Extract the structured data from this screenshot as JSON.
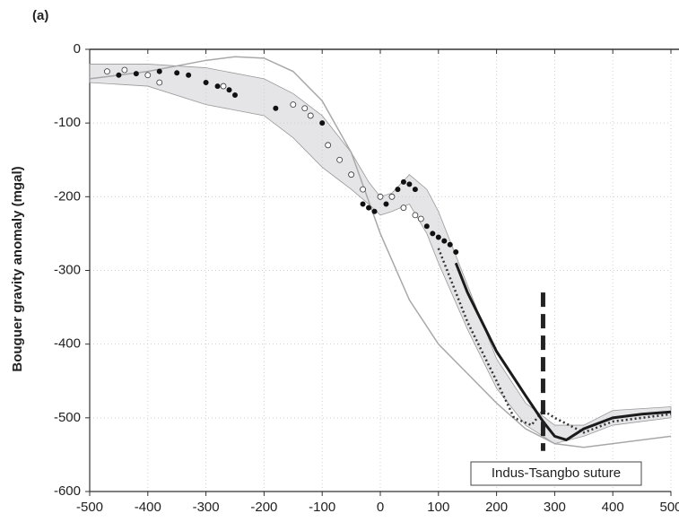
{
  "chart_data": {
    "type": "line",
    "panel_label": "(a)",
    "y_label": "Bouguer gravity anomaly  (mgal)",
    "xlim": [
      -500,
      500
    ],
    "xticks": [
      -500,
      -400,
      -300,
      -200,
      -100,
      0,
      100,
      200,
      300,
      400,
      500
    ],
    "ylim": [
      -600,
      0
    ],
    "yticks": [
      0,
      -100,
      -200,
      -300,
      -400,
      -500,
      -600
    ],
    "grid": true,
    "band": {
      "color": "#cfcfd6",
      "x": [
        -500,
        -400,
        -300,
        -200,
        -150,
        -100,
        -50,
        -20,
        0,
        20,
        50,
        80,
        100,
        150,
        200,
        250,
        300,
        350,
        400,
        500
      ],
      "upper": [
        -20,
        -20,
        -25,
        -40,
        -60,
        -90,
        -140,
        -180,
        -200,
        -195,
        -170,
        -190,
        -220,
        -320,
        -420,
        -480,
        -510,
        -510,
        -490,
        -485
      ],
      "lower": [
        -45,
        -50,
        -75,
        -90,
        -120,
        -160,
        -190,
        -210,
        -225,
        -220,
        -210,
        -250,
        -290,
        -380,
        -460,
        -510,
        -535,
        -525,
        -510,
        -500
      ]
    },
    "series": [
      {
        "style": "line",
        "color": "#a8a8a8",
        "x": [
          -500,
          -400,
          -300,
          -250,
          -200,
          -150,
          -100,
          -50,
          0,
          50,
          100,
          150,
          200,
          250,
          300,
          350,
          400,
          500
        ],
        "values": [
          -40,
          -30,
          -15,
          -10,
          -12,
          -30,
          -70,
          -140,
          -250,
          -340,
          -400,
          -440,
          -480,
          -515,
          -535,
          -540,
          -535,
          -525
        ]
      },
      {
        "style": "dotted",
        "color": "#333333",
        "x": [
          100,
          150,
          200,
          230,
          260,
          280,
          300,
          350,
          400,
          500
        ],
        "values": [
          -270,
          -370,
          -450,
          -500,
          -510,
          -490,
          -500,
          -520,
          -505,
          -495
        ]
      },
      {
        "style": "line-bold",
        "color": "#1a1a1a",
        "x": [
          130,
          150,
          200,
          250,
          280,
          300,
          320,
          350,
          400,
          450,
          500
        ],
        "values": [
          -290,
          -330,
          -410,
          -470,
          -505,
          -525,
          -530,
          -515,
          -500,
          -495,
          -492
        ]
      },
      {
        "style": "open-markers",
        "color": "#333333",
        "x": [
          -470,
          -440,
          -400,
          -380,
          -270,
          -150,
          -130,
          -120,
          -90,
          -70,
          -50,
          -30,
          0,
          20,
          40,
          60,
          70
        ],
        "values": [
          -30,
          -28,
          -35,
          -45,
          -50,
          -75,
          -80,
          -90,
          -130,
          -150,
          -170,
          -190,
          -200,
          -200,
          -215,
          -225,
          -230
        ]
      },
      {
        "style": "markers",
        "color": "#111111",
        "x": [
          -450,
          -420,
          -380,
          -350,
          -330,
          -300,
          -280,
          -260,
          -250,
          -180,
          -100,
          -30,
          -20,
          -10,
          10,
          30,
          40,
          50,
          60,
          80,
          90,
          100,
          110,
          120,
          130
        ],
        "values": [
          -35,
          -33,
          -30,
          -32,
          -35,
          -45,
          -50,
          -55,
          -62,
          -80,
          -100,
          -210,
          -215,
          -220,
          -210,
          -190,
          -180,
          -183,
          -190,
          -240,
          -250,
          -255,
          -260,
          -265,
          -275
        ]
      }
    ],
    "suture": {
      "x": 280,
      "y": [
        -330,
        -545
      ],
      "label": "Indus-Tsangbo suture"
    }
  }
}
